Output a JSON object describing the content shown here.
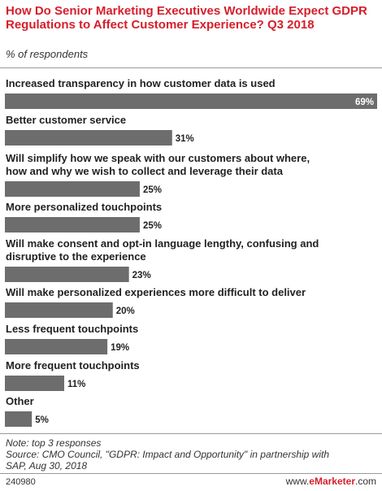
{
  "chart_data": {
    "type": "bar",
    "orientation": "horizontal",
    "title": "How Do Senior Marketing Executives Worldwide Expect GDPR Regulations to Affect Customer Experience? Q3 2018",
    "subtitle": "% of respondents",
    "value_suffix": "%",
    "xlim": [
      0,
      69
    ],
    "bar_color": "#6d6d6d",
    "categories": [
      [
        "Increased transparency in how customer data is used"
      ],
      [
        "Better customer service"
      ],
      [
        "Will simplify how we speak with our customers about where,",
        "how and why we wish to collect and leverage their data"
      ],
      [
        "More personalized touchpoints"
      ],
      [
        "Will make consent and opt-in language lengthy, confusing and",
        "disruptive to the experience"
      ],
      [
        "Will make personalized experiences more difficult to deliver"
      ],
      [
        "Less frequent touchpoints"
      ],
      [
        "More frequent touchpoints"
      ],
      [
        "Other"
      ]
    ],
    "values": [
      69,
      31,
      25,
      25,
      23,
      20,
      19,
      11,
      5
    ]
  },
  "footer": {
    "note_line1": "Note: top 3 responses",
    "note_line2": "Source: CMO Council, \"GDPR: Impact and Opportunity\" in partnership with",
    "note_line3": "SAP, Aug 30, 2018",
    "chart_id": "240980",
    "brand_prefix": "www.",
    "brand_name": "eMarketer",
    "brand_suffix": ".com"
  },
  "colors": {
    "accent": "#d71e2b",
    "bar": "#6d6d6d"
  }
}
